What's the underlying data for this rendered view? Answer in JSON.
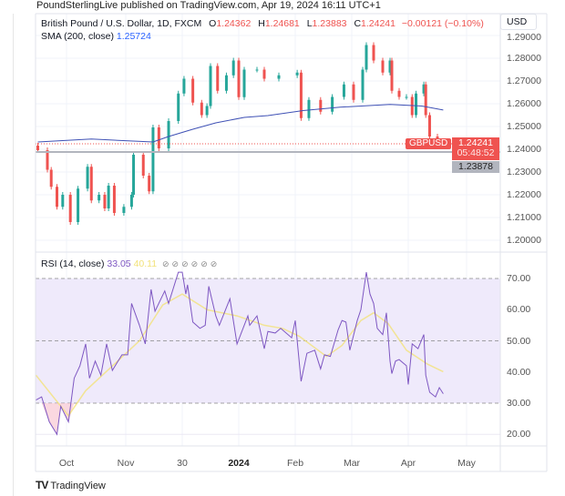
{
  "publisher_line": "PoundSterlingLive published on TradingView.com, Apr 19, 2024 16:11 UTC+1",
  "legend": {
    "instrument": "British Pound / U.S. Dollar, 1D, FXCM",
    "o_label": "O",
    "o": "1.24362",
    "h_label": "H",
    "h": "1.24681",
    "l_label": "L",
    "l": "1.23883",
    "c_label": "C",
    "c": "1.24241",
    "change": "−0.00121 (−0.10%)",
    "sma_label": "SMA (200, close)",
    "sma_value": "1.25724"
  },
  "currency_button": "USD",
  "price_labels": {
    "symbol": "GBPUSD",
    "last": "1.24241",
    "countdown": "05:48:52",
    "line_level": "1.23878"
  },
  "rsi_legend": {
    "label": "RSI (14, close)",
    "rsi_value": "33.05",
    "ma_value": "40.11",
    "eye_icons": [
      "⊘",
      "⊘",
      "⊘",
      "⊘",
      "⊘",
      "⊘"
    ]
  },
  "colors": {
    "up": "#26a69a",
    "down": "#ef5350",
    "sma": "#3f51b5",
    "rsi": "#7e57c2",
    "rsi_ma": "#f2e27a",
    "rsi_band": "#efeafb",
    "grey_line": "#b2b5be"
  },
  "branding": {
    "logo_text": "TradingView",
    "logo_mark": "TV"
  },
  "chart_data": [
    {
      "type": "candlestick",
      "title": "British Pound / U.S. Dollar, 1D, FXCM",
      "ylim": [
        1.195,
        1.29
      ],
      "y_ticks": [
        "1.29000",
        "1.28000",
        "1.27000",
        "1.26000",
        "1.25000",
        "1.24000",
        "1.23000",
        "1.22000",
        "1.21000",
        "1.20000"
      ],
      "x_ticks": [
        "Oct",
        "Nov",
        "30",
        "2024",
        "Feb",
        "Mar",
        "Apr",
        "May"
      ],
      "grid": true,
      "close_series": [
        [
          "2023-09-16",
          1.2396
        ],
        [
          "2023-09-21",
          1.231
        ],
        [
          "2023-09-23",
          1.2235
        ],
        [
          "2023-09-26",
          1.2147
        ],
        [
          "2023-09-29",
          1.22
        ],
        [
          "2023-10-03",
          1.208
        ],
        [
          "2023-10-07",
          1.2227
        ],
        [
          "2023-10-12",
          1.2323
        ],
        [
          "2023-10-14",
          1.2175
        ],
        [
          "2023-10-18",
          1.22
        ],
        [
          "2023-10-21",
          1.214
        ],
        [
          "2023-10-23",
          1.224
        ],
        [
          "2023-10-26",
          1.212
        ],
        [
          "2023-10-31",
          1.2147
        ],
        [
          "2023-11-04",
          1.22
        ],
        [
          "2023-11-05",
          1.2376
        ],
        [
          "2023-11-10",
          1.2284
        ],
        [
          "2023-11-13",
          1.2215
        ],
        [
          "2023-11-15",
          1.2496
        ],
        [
          "2023-11-18",
          1.2404
        ],
        [
          "2023-11-23",
          1.2524
        ],
        [
          "2023-11-28",
          1.2645
        ],
        [
          "2023-12-01",
          1.271
        ],
        [
          "2023-12-06",
          1.2605
        ],
        [
          "2023-12-11",
          1.255
        ],
        [
          "2023-12-14",
          1.259
        ],
        [
          "2023-12-16",
          1.2766
        ],
        [
          "2023-12-20",
          1.2657
        ],
        [
          "2023-12-25",
          1.2725
        ],
        [
          "2023-12-29",
          1.279
        ],
        [
          "2024-01-01",
          1.2629
        ],
        [
          "2024-01-04",
          1.275
        ],
        [
          "2024-01-11",
          1.275
        ],
        [
          "2024-01-15",
          1.271
        ],
        [
          "2024-01-23",
          1.2725
        ],
        [
          "2024-02-02",
          1.2737
        ],
        [
          "2024-02-04",
          1.2537
        ],
        [
          "2024-02-08",
          1.2617
        ],
        [
          "2024-02-14",
          1.2565
        ],
        [
          "2024-02-20",
          1.263
        ],
        [
          "2024-02-26",
          1.2685
        ],
        [
          "2024-03-02",
          1.2617
        ],
        [
          "2024-03-07",
          1.275
        ],
        [
          "2024-03-09",
          1.2858
        ],
        [
          "2024-03-13",
          1.279
        ],
        [
          "2024-03-18",
          1.2737
        ],
        [
          "2024-03-22",
          1.279
        ],
        [
          "2024-03-23",
          1.2657
        ],
        [
          "2024-03-27",
          1.263
        ],
        [
          "2024-03-31",
          1.263
        ],
        [
          "2024-04-03",
          1.255
        ],
        [
          "2024-04-05",
          1.2645
        ],
        [
          "2024-04-09",
          1.2685
        ],
        [
          "2024-04-10",
          1.255
        ],
        [
          "2024-04-12",
          1.2456
        ],
        [
          "2024-04-16",
          1.2428
        ],
        [
          "2024-04-19",
          1.24241
        ]
      ],
      "sma_200": [
        [
          "2023-09-16",
          1.2432
        ],
        [
          "2023-10-14",
          1.2445
        ],
        [
          "2023-11-15",
          1.2432
        ],
        [
          "2023-11-23",
          1.2456
        ],
        [
          "2023-12-06",
          1.2488
        ],
        [
          "2023-12-19",
          1.2516
        ],
        [
          "2024-01-04",
          1.254
        ],
        [
          "2024-01-17",
          1.2548
        ],
        [
          "2024-02-05",
          1.257
        ],
        [
          "2024-02-24",
          1.2585
        ],
        [
          "2024-03-22",
          1.2597
        ],
        [
          "2024-04-08",
          1.259
        ],
        [
          "2024-04-19",
          1.25724
        ]
      ],
      "last_price": 1.24241,
      "horizontal_line": 1.23878
    },
    {
      "type": "line",
      "title": "RSI (14, close)",
      "ylim": [
        15,
        75
      ],
      "y_ticks": [
        "70.00",
        "60.00",
        "50.00",
        "40.00",
        "30.00",
        "20.00"
      ],
      "bands": {
        "upper": 70,
        "middle": 50,
        "lower": 30
      },
      "rsi": [
        [
          "2023-09-15",
          31
        ],
        [
          "2023-09-18",
          32
        ],
        [
          "2023-09-22",
          24
        ],
        [
          "2023-09-26",
          20
        ],
        [
          "2023-09-28",
          29
        ],
        [
          "2023-10-02",
          24
        ],
        [
          "2023-10-05",
          38
        ],
        [
          "2023-10-08",
          42
        ],
        [
          "2023-10-11",
          49
        ],
        [
          "2023-10-13",
          38
        ],
        [
          "2023-10-16",
          43.5
        ],
        [
          "2023-10-19",
          39
        ],
        [
          "2023-10-22",
          49
        ],
        [
          "2023-10-25",
          40.5
        ],
        [
          "2023-10-30",
          45.5
        ],
        [
          "2023-11-02",
          45.5
        ],
        [
          "2023-11-04",
          62
        ],
        [
          "2023-11-08",
          55
        ],
        [
          "2023-11-11",
          49
        ],
        [
          "2023-11-14",
          66.5
        ],
        [
          "2023-11-16",
          59.5
        ],
        [
          "2023-11-21",
          66
        ],
        [
          "2023-11-23",
          62
        ],
        [
          "2023-11-28",
          72
        ],
        [
          "2023-11-30",
          72
        ],
        [
          "2023-12-02",
          65
        ],
        [
          "2023-12-03",
          68
        ],
        [
          "2023-12-06",
          56
        ],
        [
          "2023-12-10",
          54
        ],
        [
          "2023-12-13",
          55
        ],
        [
          "2023-12-15",
          67.5
        ],
        [
          "2023-12-19",
          58
        ],
        [
          "2023-12-21",
          55
        ],
        [
          "2023-12-27",
          63.5
        ],
        [
          "2023-12-31",
          49
        ],
        [
          "2024-01-06",
          58
        ],
        [
          "2024-01-07",
          55
        ],
        [
          "2024-01-11",
          58
        ],
        [
          "2024-01-15",
          47.5
        ],
        [
          "2024-01-17",
          53
        ],
        [
          "2024-01-21",
          52.5
        ],
        [
          "2024-01-24",
          54
        ],
        [
          "2024-01-30",
          51
        ],
        [
          "2024-02-01",
          56.5
        ],
        [
          "2024-02-04",
          37
        ],
        [
          "2024-02-07",
          46
        ],
        [
          "2024-02-11",
          47
        ],
        [
          "2024-02-14",
          41
        ],
        [
          "2024-02-16",
          45.5
        ],
        [
          "2024-02-19",
          45
        ],
        [
          "2024-02-23",
          53.5
        ],
        [
          "2024-02-25",
          56.5
        ],
        [
          "2024-02-27",
          56
        ],
        [
          "2024-02-29",
          47
        ],
        [
          "2024-03-04",
          56.5
        ],
        [
          "2024-03-06",
          60
        ],
        [
          "2024-03-09",
          72
        ],
        [
          "2024-03-11",
          65
        ],
        [
          "2024-03-13",
          62
        ],
        [
          "2024-03-15",
          54
        ],
        [
          "2024-03-18",
          52
        ],
        [
          "2024-03-20",
          59
        ],
        [
          "2024-03-22",
          43.5
        ],
        [
          "2024-03-23",
          39.5
        ],
        [
          "2024-03-25",
          43.5
        ],
        [
          "2024-03-27",
          44
        ],
        [
          "2024-03-31",
          42
        ],
        [
          "2024-04-01",
          36
        ],
        [
          "2024-04-03",
          49
        ],
        [
          "2024-04-06",
          47.5
        ],
        [
          "2024-04-09",
          52
        ],
        [
          "2024-04-10",
          39
        ],
        [
          "2024-04-12",
          33.5
        ],
        [
          "2024-04-15",
          32
        ],
        [
          "2024-04-17",
          35
        ],
        [
          "2024-04-19",
          33.05
        ]
      ],
      "rsi_ma": [
        [
          "2023-09-15",
          39
        ],
        [
          "2023-09-28",
          29
        ],
        [
          "2023-10-02",
          26
        ],
        [
          "2023-10-11",
          34
        ],
        [
          "2023-10-26",
          42.5
        ],
        [
          "2023-11-08",
          50
        ],
        [
          "2023-11-20",
          61.5
        ],
        [
          "2023-11-30",
          65
        ],
        [
          "2023-12-14",
          60
        ],
        [
          "2023-12-31",
          58
        ],
        [
          "2024-01-15",
          55
        ],
        [
          "2024-01-25",
          54
        ],
        [
          "2024-02-03",
          51.5
        ],
        [
          "2024-02-17",
          45
        ],
        [
          "2024-02-25",
          48.5
        ],
        [
          "2024-03-06",
          56.5
        ],
        [
          "2024-03-13",
          59
        ],
        [
          "2024-03-21",
          55.5
        ],
        [
          "2024-03-31",
          47
        ],
        [
          "2024-04-11",
          42.5
        ],
        [
          "2024-04-19",
          40.11
        ]
      ]
    }
  ]
}
